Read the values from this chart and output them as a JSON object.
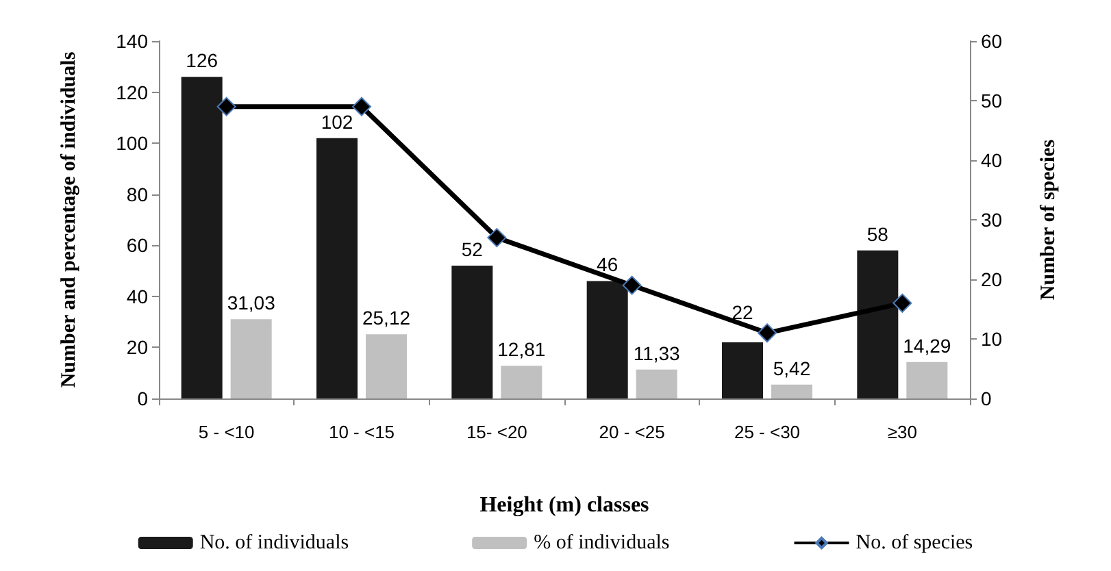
{
  "chart_data": {
    "type": "bar",
    "xlabel": "Height (m) classes",
    "ylabel": "Number and percentage of individuals",
    "y2label": "Number of species",
    "categories": [
      "5 - <10",
      "10 - <15",
      "15- <20",
      "20 - <25",
      "25 - <30",
      "≥30"
    ],
    "series": [
      {
        "name": "No. of individuals",
        "color": "#1a1a1a",
        "values": [
          126,
          102,
          52,
          46,
          22,
          58
        ],
        "value_labels": [
          "126",
          "102",
          "52",
          "46",
          "22",
          "58"
        ]
      },
      {
        "name": "% of individuals",
        "color": "#c0c0c0",
        "values": [
          31.03,
          25.12,
          12.81,
          11.33,
          5.42,
          14.29
        ],
        "value_labels": [
          "31,03",
          "25,12",
          "12,81",
          "11,33",
          "5,42",
          "14,29"
        ]
      },
      {
        "name": "No. of species",
        "type": "line",
        "axis": "y2",
        "color": "#000000",
        "values": [
          49,
          49,
          27,
          19,
          11,
          16
        ],
        "marker": "diamond",
        "line_style": "solid"
      }
    ],
    "ylim": [
      0,
      140
    ],
    "yticks": [
      0,
      20,
      40,
      60,
      80,
      100,
      120,
      140
    ],
    "y2lim": [
      0,
      60
    ],
    "y2ticks": [
      0,
      10,
      20,
      30,
      40,
      50,
      60
    ],
    "grid": false,
    "legend": "bottom"
  }
}
